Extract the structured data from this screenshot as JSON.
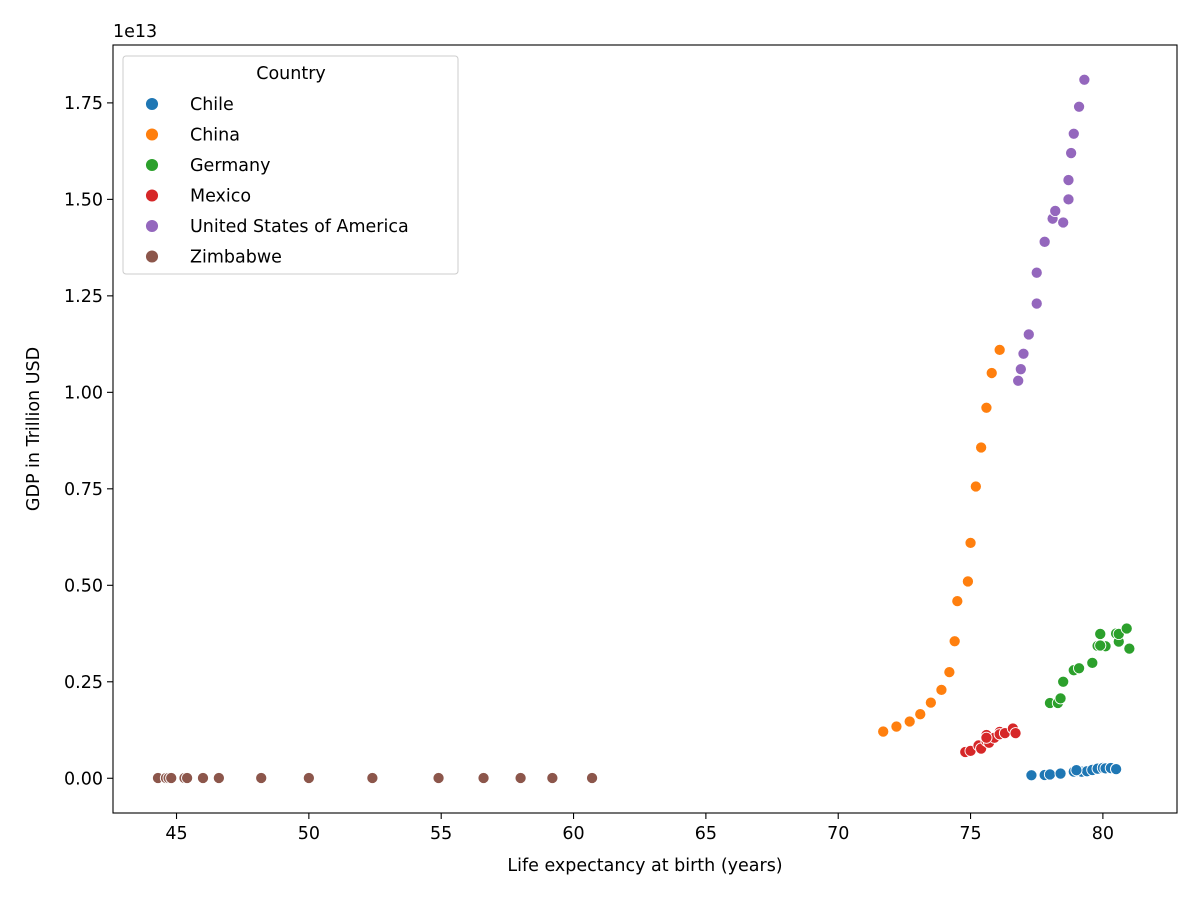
{
  "chart_data": {
    "type": "scatter",
    "title": "",
    "xlabel": "Life expectancy at birth (years)",
    "ylabel": "GDP in Trillion USD",
    "y_offset_text": "1e13",
    "xlim": [
      42.6,
      82.8
    ],
    "ylim": [
      -0.09,
      1.9
    ],
    "x_ticks": [
      45,
      50,
      55,
      60,
      65,
      70,
      75,
      80
    ],
    "x_tick_labels": [
      "45",
      "50",
      "55",
      "60",
      "65",
      "70",
      "75",
      "80"
    ],
    "y_ticks": [
      0,
      0.25,
      0.5,
      0.75,
      1.0,
      1.25,
      1.5,
      1.75
    ],
    "y_tick_labels": [
      "0.00",
      "0.25",
      "0.50",
      "0.75",
      "1.00",
      "1.25",
      "1.50",
      "1.75"
    ],
    "grid": false,
    "legend": {
      "title": "Country",
      "position": "top-left"
    },
    "series": [
      {
        "name": "Chile",
        "color": "#1f77b4",
        "points": [
          [
            77.3,
            0.0078
          ],
          [
            77.8,
            0.0085
          ],
          [
            78.0,
            0.0099
          ],
          [
            78.4,
            0.0122
          ],
          [
            78.9,
            0.0173
          ],
          [
            79.1,
            0.0179
          ],
          [
            79.2,
            0.017
          ],
          [
            79.4,
            0.0182
          ],
          [
            79.6,
            0.0216
          ],
          [
            79.8,
            0.0248
          ],
          [
            80.0,
            0.0268
          ],
          [
            80.1,
            0.0257
          ],
          [
            80.3,
            0.0265
          ],
          [
            80.5,
            0.0239
          ],
          [
            80.5,
            0.0237
          ],
          [
            79.0,
            0.0209
          ]
        ]
      },
      {
        "name": "China",
        "color": "#ff7f0e",
        "points": [
          [
            71.7,
            0.121
          ],
          [
            72.2,
            0.134
          ],
          [
            72.7,
            0.147
          ],
          [
            73.1,
            0.166
          ],
          [
            73.5,
            0.196
          ],
          [
            73.9,
            0.229
          ],
          [
            74.2,
            0.275
          ],
          [
            74.4,
            0.355
          ],
          [
            74.5,
            0.459
          ],
          [
            74.9,
            0.51
          ],
          [
            75.0,
            0.61
          ],
          [
            75.2,
            0.756
          ],
          [
            75.4,
            0.857
          ],
          [
            75.6,
            0.96
          ],
          [
            75.8,
            1.05
          ],
          [
            76.1,
            1.11
          ]
        ]
      },
      {
        "name": "Germany",
        "color": "#2ca02c",
        "points": [
          [
            78.0,
            0.195
          ],
          [
            78.3,
            0.195
          ],
          [
            78.4,
            0.207
          ],
          [
            78.5,
            0.25
          ],
          [
            78.9,
            0.28
          ],
          [
            79.1,
            0.285
          ],
          [
            79.6,
            0.299
          ],
          [
            79.8,
            0.343
          ],
          [
            79.9,
            0.374
          ],
          [
            80.1,
            0.342
          ],
          [
            80.5,
            0.375
          ],
          [
            80.6,
            0.354
          ],
          [
            80.6,
            0.374
          ],
          [
            80.9,
            0.388
          ],
          [
            81.0,
            0.336
          ],
          [
            79.9,
            0.344
          ]
        ]
      },
      {
        "name": "Mexico",
        "color": "#d62728",
        "points": [
          [
            74.8,
            0.068
          ],
          [
            75.0,
            0.071
          ],
          [
            75.3,
            0.085
          ],
          [
            75.4,
            0.077
          ],
          [
            75.6,
            0.097
          ],
          [
            75.6,
            0.112
          ],
          [
            75.7,
            0.092
          ],
          [
            75.9,
            0.105
          ],
          [
            76.1,
            0.12
          ],
          [
            76.1,
            0.114
          ],
          [
            76.3,
            0.117
          ],
          [
            76.6,
            0.129
          ],
          [
            76.7,
            0.117
          ],
          [
            75.6,
            0.105
          ]
        ]
      },
      {
        "name": "United States of America",
        "color": "#9467bd",
        "points": [
          [
            76.8,
            1.03
          ],
          [
            76.9,
            1.06
          ],
          [
            77.0,
            1.1
          ],
          [
            77.2,
            1.15
          ],
          [
            77.5,
            1.23
          ],
          [
            77.5,
            1.31
          ],
          [
            77.8,
            1.39
          ],
          [
            78.1,
            1.45
          ],
          [
            78.2,
            1.47
          ],
          [
            78.5,
            1.44
          ],
          [
            78.7,
            1.5
          ],
          [
            78.7,
            1.55
          ],
          [
            78.8,
            1.62
          ],
          [
            78.9,
            1.67
          ],
          [
            79.1,
            1.74
          ],
          [
            79.3,
            1.81
          ]
        ]
      },
      {
        "name": "Zimbabwe",
        "color": "#8c564b",
        "points": [
          [
            44.3,
            0.0006
          ],
          [
            44.6,
            0.0006
          ],
          [
            44.7,
            0.0007
          ],
          [
            44.8,
            0.0006
          ],
          [
            45.3,
            0.0006
          ],
          [
            45.4,
            0.0006
          ],
          [
            46.0,
            0.0006
          ],
          [
            46.6,
            0.0006
          ],
          [
            48.2,
            0.0006
          ],
          [
            50.0,
            0.0006
          ],
          [
            52.4,
            0.0006
          ],
          [
            54.9,
            0.0006
          ],
          [
            56.6,
            0.0006
          ],
          [
            58.0,
            0.0006
          ],
          [
            59.2,
            0.0006
          ],
          [
            60.7,
            0.0006
          ]
        ]
      }
    ]
  }
}
